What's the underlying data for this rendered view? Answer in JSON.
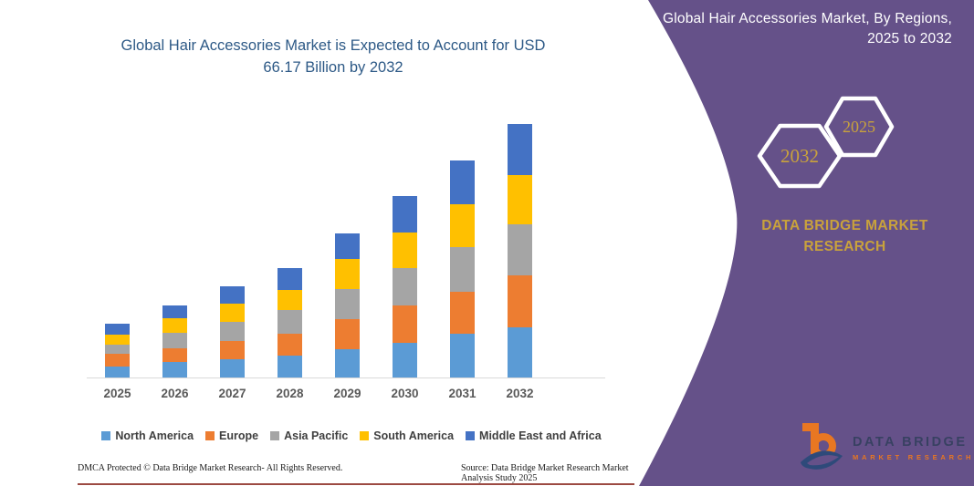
{
  "left": {
    "title_line1": "Global Hair Accessories Market is Expected to Account for USD",
    "title_line2": "66.17 Billion by 2032",
    "footer_left": "DMCA Protected © Data Bridge Market Research-  All Rights Reserved.",
    "footer_right": "Source: Data Bridge Market Research  Market Analysis Study 2025"
  },
  "right_panel": {
    "title": "Global Hair Accessories Market, By Regions, 2025 to 2032",
    "hexagons": [
      {
        "label": "2032"
      },
      {
        "label": "2025"
      }
    ],
    "brand_line1": "DATA BRIDGE MARKET",
    "brand_line2": "RESEARCH",
    "logo": {
      "name": "DATA BRIDGE",
      "subtitle": "MARKET RESEARCH"
    }
  },
  "colors": {
    "panel_purple": "#655189",
    "accent_gold": "#C9A23C",
    "title_blue": "#2d5986",
    "axis_gray": "#d9d9d9",
    "logo_orange": "#e87722",
    "logo_navy": "#34405e",
    "bottom_rule_maroon": "#8b2a21"
  },
  "chart_data": {
    "type": "bar",
    "stacked": true,
    "title": "Global Hair Accessories Market is Expected to Account for USD 66.17 Billion by 2032",
    "unit": "USD Billion",
    "categories": [
      "2025",
      "2026",
      "2027",
      "2028",
      "2029",
      "2030",
      "2031",
      "2032"
    ],
    "series": [
      {
        "name": "North America",
        "color": "#5B9BD5",
        "values": [
          2.9,
          4.0,
          4.8,
          5.7,
          7.3,
          9.0,
          11.4,
          13.0
        ]
      },
      {
        "name": "Europe",
        "color": "#ED7D31",
        "values": [
          3.2,
          3.7,
          4.7,
          5.7,
          7.9,
          9.8,
          11.1,
          13.7
        ]
      },
      {
        "name": "Asia Pacific",
        "color": "#A5A5A5",
        "values": [
          2.6,
          4.0,
          5.0,
          6.2,
          7.9,
          9.8,
          11.6,
          13.3
        ]
      },
      {
        "name": "South America",
        "color": "#FFC000",
        "values": [
          2.5,
          3.7,
          4.8,
          5.2,
          7.8,
          9.3,
          11.1,
          12.9
        ]
      },
      {
        "name": "Middle East and Africa",
        "color": "#4472C4",
        "values": [
          2.8,
          3.4,
          4.5,
          5.8,
          6.7,
          9.4,
          11.4,
          13.3
        ]
      }
    ],
    "totals": [
      14.0,
      18.8,
      23.8,
      28.6,
      37.6,
      47.3,
      56.6,
      66.17
    ],
    "highlight_total_2032": 66.17,
    "ylim": [
      0,
      70
    ],
    "gridlines": false,
    "y_axis_shown": false,
    "legend_position": "bottom"
  }
}
